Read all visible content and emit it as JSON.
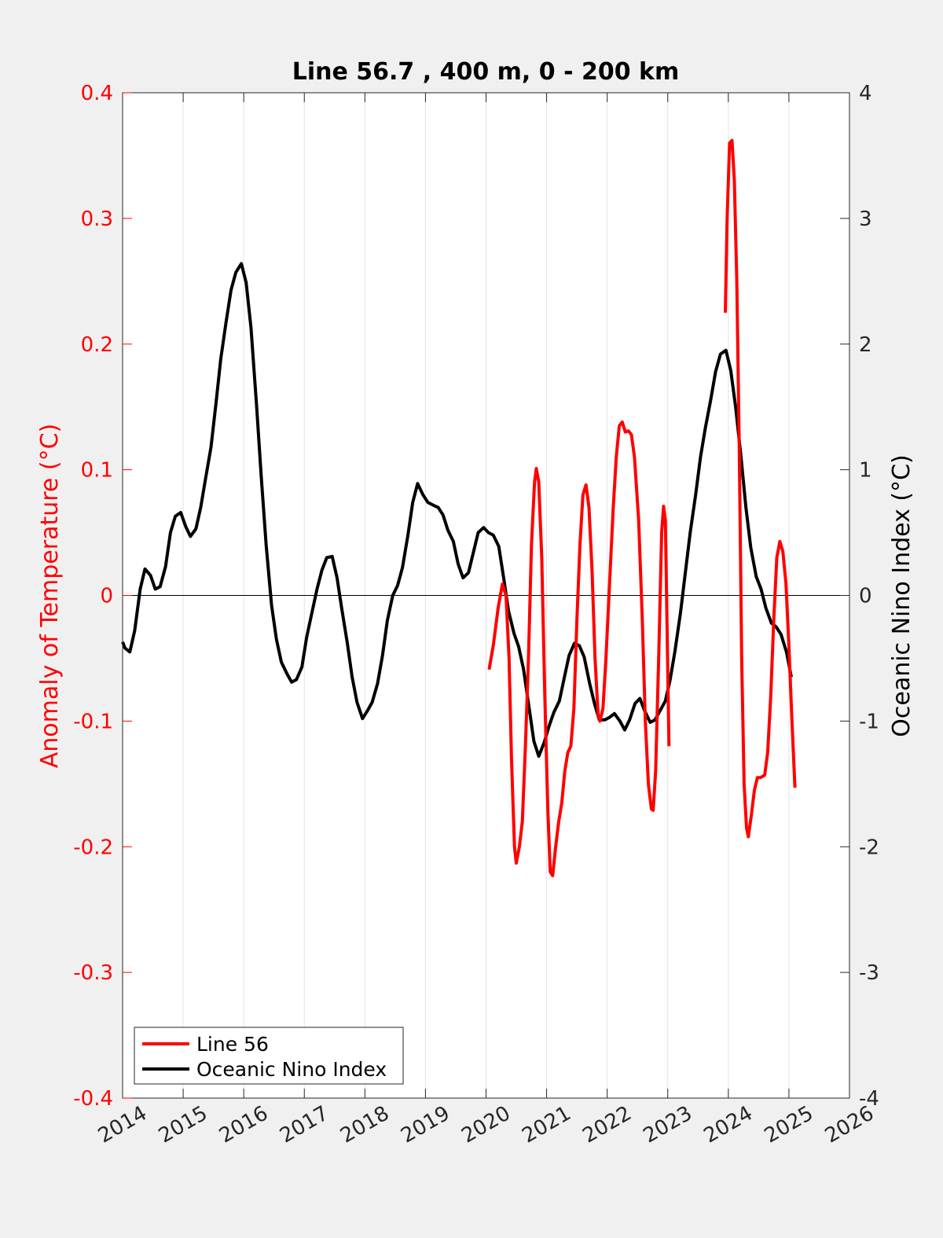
{
  "chart_data": {
    "type": "line",
    "title": "Line 56.7 , 400 m, 0 - 200 km",
    "xlabel": "",
    "ylabel_left": "Anomaly of Temperature (°C)",
    "ylabel_right": "Oceanic Nino Index (°C)",
    "xlim": [
      2014,
      2026
    ],
    "ylim_left": [
      -0.4,
      0.4
    ],
    "ylim_right": [
      -4,
      4
    ],
    "x_ticks": [
      "2014",
      "2015",
      "2016",
      "2017",
      "2018",
      "2019",
      "2020",
      "2021",
      "2022",
      "2023",
      "2024",
      "2025",
      "2026"
    ],
    "y_ticks_left": [
      "-0.4",
      "-0.3",
      "-0.2",
      "-0.1",
      "0",
      "0.1",
      "0.2",
      "0.3",
      "0.4"
    ],
    "y_ticks_right": [
      "-4",
      "-3",
      "-2",
      "-1",
      "0",
      "1",
      "2",
      "3",
      "4"
    ],
    "grid": "vertical",
    "legend_position": "bottom-left",
    "colors": {
      "line56": "#ff0000",
      "oni": "#000000",
      "left_axis": "#ff0000",
      "right_axis": "#000000"
    },
    "series": [
      {
        "name": "Line 56",
        "axis": "left",
        "color": "#ff0000",
        "segments": [
          [
            [
              2020.05,
              -0.059
            ],
            [
              2020.12,
              -0.04
            ],
            [
              2020.2,
              -0.01
            ],
            [
              2020.27,
              0.009
            ],
            [
              2020.33,
              0.0
            ],
            [
              2020.38,
              -0.05
            ],
            [
              2020.42,
              -0.13
            ],
            [
              2020.47,
              -0.2
            ],
            [
              2020.5,
              -0.213
            ],
            [
              2020.55,
              -0.2
            ],
            [
              2020.6,
              -0.18
            ],
            [
              2020.65,
              -0.12
            ],
            [
              2020.7,
              -0.05
            ],
            [
              2020.75,
              0.04
            ],
            [
              2020.8,
              0.09
            ],
            [
              2020.83,
              0.101
            ],
            [
              2020.87,
              0.09
            ],
            [
              2020.92,
              0.03
            ],
            [
              2020.97,
              -0.08
            ],
            [
              2021.02,
              -0.17
            ],
            [
              2021.06,
              -0.22
            ],
            [
              2021.1,
              -0.223
            ],
            [
              2021.15,
              -0.2
            ],
            [
              2021.2,
              -0.18
            ],
            [
              2021.25,
              -0.165
            ],
            [
              2021.3,
              -0.14
            ],
            [
              2021.35,
              -0.125
            ],
            [
              2021.4,
              -0.12
            ],
            [
              2021.45,
              -0.09
            ],
            [
              2021.5,
              -0.02
            ],
            [
              2021.55,
              0.04
            ],
            [
              2021.6,
              0.08
            ],
            [
              2021.65,
              0.088
            ],
            [
              2021.7,
              0.07
            ],
            [
              2021.75,
              0.02
            ],
            [
              2021.8,
              -0.05
            ],
            [
              2021.85,
              -0.095
            ],
            [
              2021.88,
              -0.1
            ],
            [
              2021.93,
              -0.09
            ],
            [
              2021.98,
              -0.05
            ],
            [
              2022.05,
              0.02
            ],
            [
              2022.1,
              0.07
            ],
            [
              2022.15,
              0.11
            ],
            [
              2022.2,
              0.135
            ],
            [
              2022.25,
              0.138
            ],
            [
              2022.3,
              0.13
            ],
            [
              2022.35,
              0.131
            ],
            [
              2022.4,
              0.128
            ],
            [
              2022.45,
              0.11
            ],
            [
              2022.52,
              0.06
            ],
            [
              2022.58,
              -0.02
            ],
            [
              2022.63,
              -0.1
            ],
            [
              2022.68,
              -0.15
            ],
            [
              2022.73,
              -0.17
            ],
            [
              2022.76,
              -0.171
            ],
            [
              2022.8,
              -0.14
            ],
            [
              2022.85,
              -0.05
            ],
            [
              2022.9,
              0.05
            ],
            [
              2022.93,
              0.071
            ],
            [
              2022.96,
              0.06
            ],
            [
              2022.99,
              -0.03
            ],
            [
              2023.02,
              -0.12
            ]
          ],
          [
            [
              2023.95,
              0.225
            ],
            [
              2023.98,
              0.3
            ],
            [
              2024.02,
              0.36
            ],
            [
              2024.06,
              0.362
            ],
            [
              2024.1,
              0.33
            ],
            [
              2024.14,
              0.25
            ],
            [
              2024.18,
              0.12
            ],
            [
              2024.22,
              -0.05
            ],
            [
              2024.26,
              -0.15
            ],
            [
              2024.3,
              -0.185
            ],
            [
              2024.33,
              -0.192
            ],
            [
              2024.38,
              -0.175
            ],
            [
              2024.43,
              -0.155
            ],
            [
              2024.48,
              -0.145
            ],
            [
              2024.53,
              -0.145
            ],
            [
              2024.6,
              -0.143
            ],
            [
              2024.65,
              -0.125
            ],
            [
              2024.7,
              -0.08
            ],
            [
              2024.75,
              -0.02
            ],
            [
              2024.8,
              0.03
            ],
            [
              2024.85,
              0.043
            ],
            [
              2024.9,
              0.035
            ],
            [
              2024.95,
              0.01
            ],
            [
              2025.0,
              -0.04
            ],
            [
              2025.05,
              -0.1
            ],
            [
              2025.1,
              -0.153
            ]
          ]
        ]
      },
      {
        "name": "Oceanic Nino Index",
        "axis": "right",
        "color": "#000000",
        "segments": [
          [
            [
              2014.0,
              -0.37
            ],
            [
              2014.04,
              -0.42
            ],
            [
              2014.12,
              -0.45
            ],
            [
              2014.2,
              -0.28
            ],
            [
              2014.29,
              0.05
            ],
            [
              2014.37,
              0.21
            ],
            [
              2014.46,
              0.16
            ],
            [
              2014.54,
              0.05
            ],
            [
              2014.62,
              0.07
            ],
            [
              2014.71,
              0.23
            ],
            [
              2014.79,
              0.5
            ],
            [
              2014.87,
              0.63
            ],
            [
              2014.96,
              0.66
            ],
            [
              2015.04,
              0.55
            ],
            [
              2015.12,
              0.47
            ],
            [
              2015.21,
              0.53
            ],
            [
              2015.29,
              0.7
            ],
            [
              2015.37,
              0.93
            ],
            [
              2015.46,
              1.18
            ],
            [
              2015.54,
              1.52
            ],
            [
              2015.62,
              1.88
            ],
            [
              2015.71,
              2.18
            ],
            [
              2015.79,
              2.43
            ],
            [
              2015.87,
              2.57
            ],
            [
              2015.96,
              2.64
            ],
            [
              2016.04,
              2.49
            ],
            [
              2016.12,
              2.13
            ],
            [
              2016.21,
              1.52
            ],
            [
              2016.29,
              0.94
            ],
            [
              2016.37,
              0.4
            ],
            [
              2016.46,
              -0.08
            ],
            [
              2016.54,
              -0.35
            ],
            [
              2016.62,
              -0.53
            ],
            [
              2016.71,
              -0.62
            ],
            [
              2016.79,
              -0.69
            ],
            [
              2016.87,
              -0.67
            ],
            [
              2016.96,
              -0.57
            ],
            [
              2017.04,
              -0.33
            ],
            [
              2017.12,
              -0.15
            ],
            [
              2017.21,
              0.05
            ],
            [
              2017.29,
              0.2
            ],
            [
              2017.37,
              0.3
            ],
            [
              2017.46,
              0.31
            ],
            [
              2017.54,
              0.14
            ],
            [
              2017.62,
              -0.11
            ],
            [
              2017.71,
              -0.38
            ],
            [
              2017.79,
              -0.65
            ],
            [
              2017.87,
              -0.85
            ],
            [
              2017.96,
              -0.98
            ],
            [
              2018.04,
              -0.92
            ],
            [
              2018.12,
              -0.85
            ],
            [
              2018.21,
              -0.7
            ],
            [
              2018.29,
              -0.48
            ],
            [
              2018.37,
              -0.2
            ],
            [
              2018.46,
              0.0
            ],
            [
              2018.54,
              0.08
            ],
            [
              2018.62,
              0.22
            ],
            [
              2018.71,
              0.48
            ],
            [
              2018.79,
              0.74
            ],
            [
              2018.87,
              0.89
            ],
            [
              2018.96,
              0.8
            ],
            [
              2019.04,
              0.74
            ],
            [
              2019.12,
              0.72
            ],
            [
              2019.21,
              0.7
            ],
            [
              2019.29,
              0.64
            ],
            [
              2019.37,
              0.52
            ],
            [
              2019.46,
              0.43
            ],
            [
              2019.54,
              0.25
            ],
            [
              2019.62,
              0.14
            ],
            [
              2019.71,
              0.18
            ],
            [
              2019.79,
              0.34
            ],
            [
              2019.87,
              0.5
            ],
            [
              2019.96,
              0.54
            ],
            [
              2020.04,
              0.5
            ],
            [
              2020.12,
              0.48
            ],
            [
              2020.21,
              0.39
            ],
            [
              2020.29,
              0.14
            ],
            [
              2020.37,
              -0.12
            ],
            [
              2020.46,
              -0.3
            ],
            [
              2020.54,
              -0.41
            ],
            [
              2020.62,
              -0.59
            ],
            [
              2020.71,
              -0.89
            ],
            [
              2020.79,
              -1.16
            ],
            [
              2020.87,
              -1.28
            ],
            [
              2020.96,
              -1.17
            ],
            [
              2021.04,
              -1.04
            ],
            [
              2021.12,
              -0.93
            ],
            [
              2021.21,
              -0.84
            ],
            [
              2021.29,
              -0.66
            ],
            [
              2021.37,
              -0.48
            ],
            [
              2021.46,
              -0.38
            ],
            [
              2021.54,
              -0.4
            ],
            [
              2021.62,
              -0.49
            ],
            [
              2021.71,
              -0.7
            ],
            [
              2021.79,
              -0.86
            ],
            [
              2021.87,
              -0.99
            ],
            [
              2021.96,
              -0.99
            ],
            [
              2022.04,
              -0.97
            ],
            [
              2022.12,
              -0.94
            ],
            [
              2022.21,
              -1.0
            ],
            [
              2022.29,
              -1.07
            ],
            [
              2022.37,
              -0.99
            ],
            [
              2022.46,
              -0.86
            ],
            [
              2022.54,
              -0.82
            ],
            [
              2022.62,
              -0.92
            ],
            [
              2022.71,
              -1.01
            ],
            [
              2022.79,
              -0.99
            ],
            [
              2022.87,
              -0.92
            ],
            [
              2022.96,
              -0.84
            ],
            [
              2023.04,
              -0.67
            ],
            [
              2023.12,
              -0.44
            ],
            [
              2023.21,
              -0.14
            ],
            [
              2023.29,
              0.18
            ],
            [
              2023.37,
              0.5
            ],
            [
              2023.46,
              0.8
            ],
            [
              2023.54,
              1.1
            ],
            [
              2023.62,
              1.33
            ],
            [
              2023.71,
              1.56
            ],
            [
              2023.79,
              1.78
            ],
            [
              2023.87,
              1.92
            ],
            [
              2023.96,
              1.95
            ],
            [
              2024.04,
              1.79
            ],
            [
              2024.12,
              1.5
            ],
            [
              2024.21,
              1.1
            ],
            [
              2024.29,
              0.7
            ],
            [
              2024.37,
              0.38
            ],
            [
              2024.46,
              0.15
            ],
            [
              2024.54,
              0.05
            ],
            [
              2024.62,
              -0.1
            ],
            [
              2024.71,
              -0.22
            ],
            [
              2024.79,
              -0.25
            ],
            [
              2024.87,
              -0.31
            ],
            [
              2024.96,
              -0.45
            ],
            [
              2025.04,
              -0.65
            ]
          ]
        ]
      }
    ]
  }
}
